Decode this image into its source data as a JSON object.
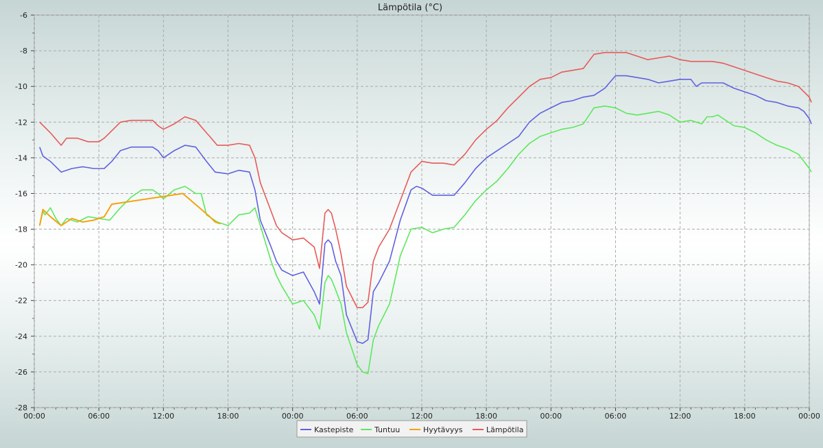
{
  "chart_data": {
    "type": "line",
    "title": "Lämpötila (°C)",
    "xlabel": "",
    "ylabel": "",
    "ylim": [
      -28,
      -6
    ],
    "xlim_hours": [
      0,
      72
    ],
    "grid": true,
    "legend_placement": "bottom-center",
    "yticks": [
      "-6",
      "-8",
      "-10",
      "-12",
      "-14",
      "-16",
      "-18",
      "-20",
      "-22",
      "-24",
      "-26",
      "-28"
    ],
    "xticks": [
      {
        "h": 0,
        "label": "00:00"
      },
      {
        "h": 6,
        "label": "06:00"
      },
      {
        "h": 12,
        "label": "12:00"
      },
      {
        "h": 18,
        "label": "18:00"
      },
      {
        "h": 24,
        "label": "00:00"
      },
      {
        "h": 30,
        "label": "06:00"
      },
      {
        "h": 36,
        "label": "12:00"
      },
      {
        "h": 42,
        "label": "18:00"
      },
      {
        "h": 48,
        "label": "00:00"
      },
      {
        "h": 54,
        "label": "06:00"
      },
      {
        "h": 60,
        "label": "12:00"
      },
      {
        "h": 66,
        "label": "18:00"
      },
      {
        "h": 72,
        "label": "00:00"
      }
    ],
    "series": [
      {
        "name": "Kastepiste",
        "color": "#6060e0",
        "x": [
          0.5,
          0.8,
          1.5,
          2.5,
          3.5,
          4.5,
          5.5,
          6.5,
          7.2,
          8,
          9,
          10,
          11,
          11.5,
          12,
          13,
          14,
          15,
          16,
          16.8,
          18,
          19,
          20,
          20.5,
          21,
          22,
          22.5,
          23,
          24,
          25,
          26,
          26.5,
          27,
          27.3,
          27.6,
          28,
          28.5,
          29,
          30,
          30.5,
          31,
          31.5,
          32,
          33,
          34,
          35,
          35.5,
          36,
          37,
          38,
          39,
          40,
          41,
          42,
          43,
          44,
          45,
          46,
          47,
          48,
          49,
          50,
          51,
          52,
          53,
          54,
          55,
          56,
          57,
          58,
          59,
          60,
          61,
          61.5,
          62,
          63,
          64,
          65,
          66,
          67,
          68,
          69,
          70,
          71,
          71.5,
          72,
          72.2
        ],
        "values": [
          -13.4,
          -13.9,
          -14.2,
          -14.8,
          -14.6,
          -14.5,
          -14.6,
          -14.6,
          -14.2,
          -13.6,
          -13.4,
          -13.4,
          -13.4,
          -13.6,
          -14,
          -13.6,
          -13.3,
          -13.4,
          -14.2,
          -14.8,
          -14.9,
          -14.7,
          -14.8,
          -15.8,
          -17.5,
          -19,
          -19.8,
          -20.3,
          -20.6,
          -20.4,
          -21.5,
          -22.2,
          -18.8,
          -18.6,
          -18.8,
          -19.8,
          -20.6,
          -22.8,
          -24.3,
          -24.4,
          -24.2,
          -21.5,
          -21,
          -19.8,
          -17.5,
          -15.8,
          -15.6,
          -15.7,
          -16.1,
          -16.1,
          -16.1,
          -15.4,
          -14.6,
          -14,
          -13.6,
          -13.2,
          -12.8,
          -12,
          -11.5,
          -11.2,
          -10.9,
          -10.8,
          -10.6,
          -10.5,
          -10.1,
          -9.4,
          -9.4,
          -9.5,
          -9.6,
          -9.8,
          -9.7,
          -9.6,
          -9.6,
          -10,
          -9.8,
          -9.8,
          -9.8,
          -10.1,
          -10.3,
          -10.5,
          -10.8,
          -10.9,
          -11.1,
          -11.2,
          -11.4,
          -11.8,
          -12.1
        ]
      },
      {
        "name": "Tuntuu",
        "color": "#5ce85c",
        "x": [
          0.5,
          0.8,
          1,
          1.5,
          2,
          2.5,
          3,
          4,
          5,
          6,
          7,
          8,
          9,
          10,
          11,
          11.5,
          12,
          13,
          14,
          15,
          15.5,
          16,
          17,
          18,
          19,
          20,
          20.5,
          21,
          22,
          22.5,
          23,
          24,
          25,
          26,
          26.5,
          27,
          27.3,
          27.6,
          28,
          28.5,
          29,
          30,
          30.5,
          31,
          31.5,
          32,
          33,
          34,
          35,
          36,
          37,
          38,
          39,
          40,
          41,
          42,
          43,
          44,
          45,
          46,
          47,
          48,
          49,
          50,
          51,
          52,
          53,
          54,
          55,
          56,
          57,
          58,
          59,
          60,
          61,
          62,
          62.5,
          63,
          63.5,
          64,
          65,
          66,
          67,
          68,
          69,
          70,
          71,
          71.5,
          72,
          72.2
        ],
        "values": [
          -17.8,
          -17.0,
          -17.2,
          -16.8,
          -17.4,
          -17.8,
          -17.4,
          -17.6,
          -17.3,
          -17.4,
          -17.5,
          -16.8,
          -16.2,
          -15.8,
          -15.8,
          -16.0,
          -16.3,
          -15.8,
          -15.6,
          -16.0,
          -16.0,
          -17.2,
          -17.6,
          -17.8,
          -17.2,
          -17.1,
          -16.8,
          -17.8,
          -19.8,
          -20.6,
          -21.2,
          -22.2,
          -22.0,
          -22.8,
          -23.6,
          -21.0,
          -20.6,
          -20.8,
          -21.4,
          -22.2,
          -23.8,
          -25.6,
          -26.0,
          -26.1,
          -24.2,
          -23.4,
          -22.2,
          -19.5,
          -18.0,
          -17.9,
          -18.2,
          -18.0,
          -17.9,
          -17.2,
          -16.4,
          -15.8,
          -15.3,
          -14.6,
          -13.8,
          -13.2,
          -12.8,
          -12.6,
          -12.4,
          -12.3,
          -12.1,
          -11.2,
          -11.1,
          -11.2,
          -11.5,
          -11.6,
          -11.5,
          -11.4,
          -11.6,
          -12.0,
          -11.9,
          -12.1,
          -11.7,
          -11.7,
          -11.6,
          -11.8,
          -12.2,
          -12.3,
          -12.6,
          -13.0,
          -13.3,
          -13.5,
          -13.8,
          -14.2,
          -14.6,
          -14.8
        ]
      },
      {
        "name": "Hyytävyys",
        "color": "#f5a20e",
        "x": [
          0.5,
          0.8,
          1.5,
          2.5,
          3.5,
          4.5,
          5.5,
          6.5,
          7.2,
          13.8,
          16.3,
          16.8,
          17.3
        ],
        "values": [
          -17.8,
          -16.9,
          -17.3,
          -17.8,
          -17.4,
          -17.6,
          -17.5,
          -17.3,
          -16.6,
          -16.0,
          -17.3,
          -17.6,
          -17.7
        ]
      },
      {
        "name": "Lämpötila",
        "color": "#e85858",
        "x": [
          0.5,
          1,
          1.5,
          2.5,
          3,
          4,
          5,
          6,
          6.5,
          7,
          8,
          9,
          10,
          11,
          11.5,
          12,
          13,
          14,
          15,
          16,
          16.3,
          17,
          18,
          19,
          20,
          20.5,
          21,
          22,
          22.5,
          23,
          24,
          25,
          26,
          26.5,
          27,
          27.3,
          27.6,
          28,
          28.5,
          29,
          30,
          30.5,
          31,
          31.5,
          32,
          33,
          34,
          35,
          36,
          37,
          38,
          39,
          40,
          41,
          42,
          43,
          44,
          45,
          46,
          47,
          48,
          49,
          50,
          51,
          52,
          53,
          54,
          55,
          56,
          57,
          58,
          59,
          60,
          61,
          62,
          63,
          64,
          65,
          66,
          67,
          68,
          69,
          70,
          71,
          71.5,
          72,
          72.2
        ],
        "values": [
          -12.0,
          -12.3,
          -12.6,
          -13.3,
          -12.9,
          -12.9,
          -13.1,
          -13.1,
          -12.9,
          -12.6,
          -12.0,
          -11.9,
          -11.9,
          -11.9,
          -12.2,
          -12.4,
          -12.1,
          -11.7,
          -11.9,
          -12.6,
          -12.8,
          -13.3,
          -13.3,
          -13.2,
          -13.3,
          -14.0,
          -15.4,
          -17.0,
          -17.8,
          -18.2,
          -18.6,
          -18.5,
          -19.0,
          -20.2,
          -17.1,
          -16.9,
          -17.1,
          -18.0,
          -19.4,
          -21.2,
          -22.4,
          -22.4,
          -22.1,
          -19.8,
          -19.0,
          -18.0,
          -16.4,
          -14.8,
          -14.2,
          -14.3,
          -14.3,
          -14.4,
          -13.8,
          -13.0,
          -12.4,
          -11.9,
          -11.2,
          -10.6,
          -10.0,
          -9.6,
          -9.5,
          -9.2,
          -9.1,
          -9.0,
          -8.2,
          -8.1,
          -8.1,
          -8.1,
          -8.3,
          -8.5,
          -8.4,
          -8.3,
          -8.5,
          -8.6,
          -8.6,
          -8.6,
          -8.7,
          -8.9,
          -9.1,
          -9.3,
          -9.5,
          -9.7,
          -9.8,
          -10.0,
          -10.3,
          -10.6,
          -10.9
        ]
      }
    ]
  }
}
